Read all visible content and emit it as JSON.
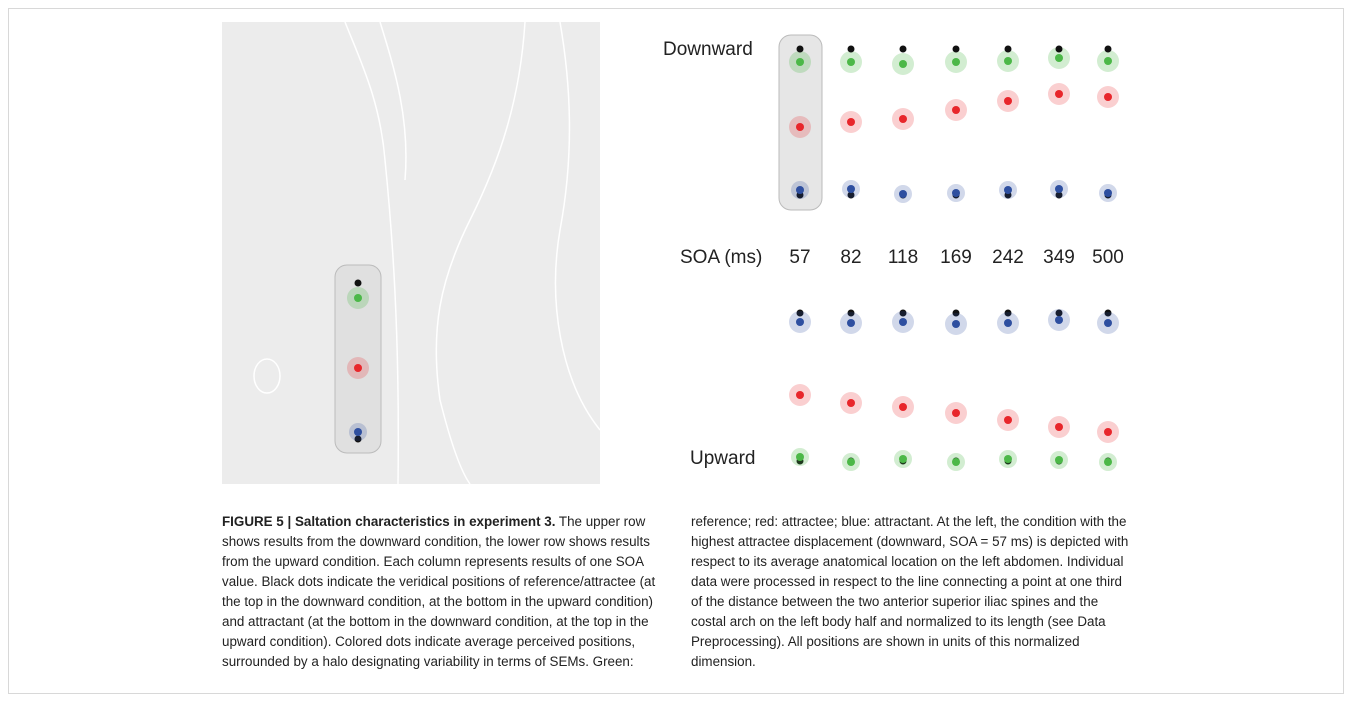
{
  "figure": {
    "downward_label": "Downward",
    "upward_label": "Upward",
    "soa_label": "SOA (ms)",
    "soa_values": [
      57,
      82,
      118,
      169,
      242,
      349,
      500
    ]
  },
  "caption": {
    "title": "FIGURE 5 | Saltation characteristics in experiment 3.",
    "text": "The upper row shows results from the downward condition, the lower row shows results from the upward condition. Each column represents results of one SOA value. Black dots indicate the veridical positions of reference/attractee (at the top in the downward condition, at the bottom in the upward condition) and attractant (at the bottom in the downward condition, at the top in the upward condition). Colored dots indicate average perceived positions, surrounded by a halo designating variability in terms of SEMs. Green: reference; red: attractee; blue: attractant. At the left, the condition with the highest attractee displacement (downward, SOA = 57 ms) is depicted with respect to its average anatomical location on the left abdomen. Individual data were processed in respect to the line connecting a point at one third of the distance between the two anterior superior iliac spines and the costal arch on the left body half and normalized to its length (see Data Preprocessing). All positions are shown in units of this normalized dimension."
  }
}
